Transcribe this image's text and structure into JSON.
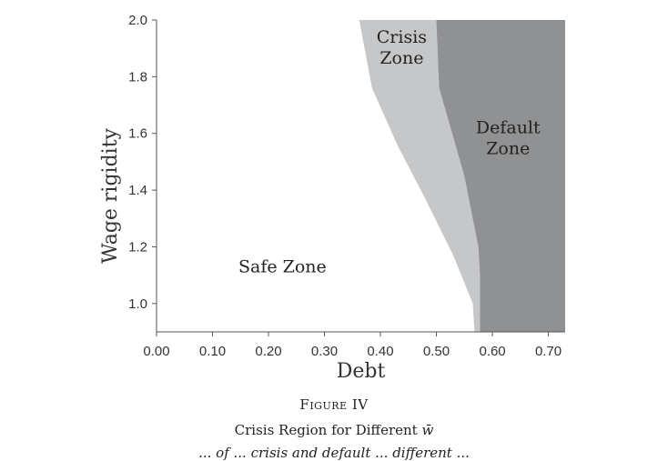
{
  "chart_data": {
    "type": "area",
    "title": "",
    "xlabel": "Debt",
    "ylabel": "Wage rigidity",
    "xlim": [
      0.0,
      0.73
    ],
    "ylim": [
      0.9,
      2.0
    ],
    "x_ticks": [
      0.0,
      0.1,
      0.2,
      0.3,
      0.4,
      0.5,
      0.6,
      0.7
    ],
    "x_tick_labels": [
      "0.00",
      "0.10",
      "0.20",
      "0.30",
      "0.40",
      "0.50",
      "0.60",
      "0.70"
    ],
    "y_ticks": [
      1.0,
      1.2,
      1.4,
      1.6,
      1.8,
      2.0
    ],
    "y_tick_labels": [
      "1.0",
      "1.2",
      "1.4",
      "1.6",
      "1.8",
      "2.0"
    ],
    "grid": false,
    "regions": [
      {
        "name": "Safe Zone",
        "color": "#ffffff",
        "label": "Safe Zone",
        "label_at": [
          0.225,
          1.11
        ]
      },
      {
        "name": "Crisis Zone",
        "color": "#c6c7c9",
        "label_lines": [
          "Crisis",
          "Zone"
        ],
        "label_at": [
          0.438,
          1.92
        ],
        "boundary": {
          "x": [
            0.362,
            0.385,
            0.43,
            0.48,
            0.53,
            0.565,
            0.568
          ],
          "y": [
            2.0,
            1.76,
            1.56,
            1.37,
            1.17,
            1.0,
            0.9
          ]
        }
      },
      {
        "name": "Default Zone",
        "color": "#909193",
        "label_lines": [
          "Default",
          "Zone"
        ],
        "label_at": [
          0.628,
          1.6
        ],
        "boundary": {
          "x": [
            0.5,
            0.505,
            0.55,
            0.575,
            0.578,
            0.578
          ],
          "y": [
            2.0,
            1.76,
            1.45,
            1.2,
            1.1,
            0.9
          ]
        }
      }
    ]
  },
  "caption": {
    "figure_number": "Figure IV",
    "title_prefix": "Crisis Region for Different ",
    "title_symbol": "w̄",
    "text": "... of ... crisis and default ... different ..."
  }
}
